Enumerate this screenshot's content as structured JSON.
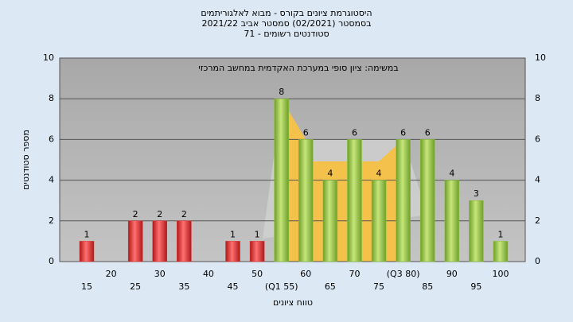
{
  "chart_data": {
    "type": "bar",
    "title": "היסטוגרמת ציונים בקורס - מבוא לאלגוריתמים",
    "subtitle_lines": [
      "בסמסטר  (02/2021)  סמסטר אביב 2021/22",
      "סטודנטים רשומים - 71"
    ],
    "annotation": "במשימה: ציון סופי במערכת האקדמית במחשב המרכזי",
    "ylabel": "מספר סטודנטים",
    "xlabel": "טווח ציונים",
    "categories": [
      "15",
      "20",
      "25",
      "30",
      "35",
      "40",
      "45",
      "50",
      "(Q1 55)",
      "60",
      "65",
      "70",
      "75",
      "(Q3 80)",
      "85",
      "90",
      "95",
      "100"
    ],
    "values": [
      1,
      0,
      2,
      2,
      2,
      0,
      1,
      1,
      8,
      6,
      4,
      6,
      4,
      6,
      6,
      4,
      3,
      1
    ],
    "colors": [
      "#e03030",
      "#e03030",
      "#e03030",
      "#e03030",
      "#e03030",
      "#e03030",
      "#e03030",
      "#e03030",
      "#8cc43c",
      "#8cc43c",
      "#8cc43c",
      "#8cc43c",
      "#8cc43c",
      "#8cc43c",
      "#8cc43c",
      "#8cc43c",
      "#8cc43c",
      "#8cc43c"
    ],
    "ylim": [
      0,
      10
    ],
    "yticks": [
      0,
      2,
      4,
      6,
      8,
      10
    ],
    "y2lim": [
      0,
      10
    ],
    "y2ticks": [
      0,
      2,
      4,
      6,
      8,
      10
    ],
    "grid": true
  }
}
